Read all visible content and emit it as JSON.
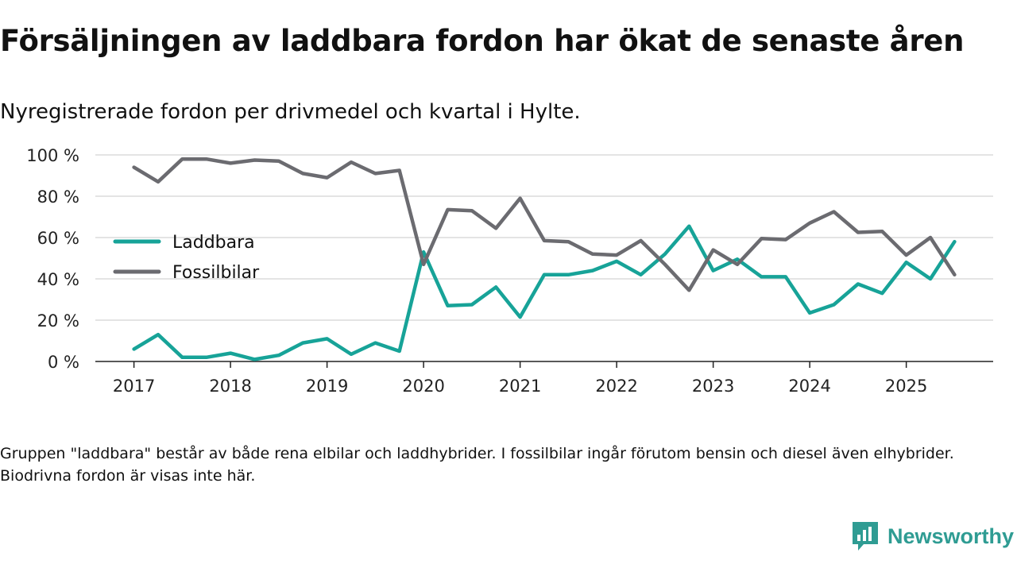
{
  "title": "Försäljningen av laddbara fordon har ökat de senaste åren",
  "subtitle": "Nyregistrerade fordon per drivmedel och kvartal i Hylte.",
  "footnote": "Gruppen \"laddbara\" består av både rena elbilar och laddhybrider. I fossilbilar ingår förutom bensin och diesel även elhybrider. Biodrivna fordon är visas inte här.",
  "brand": {
    "name": "Newsworthy",
    "color": "#2f9c93"
  },
  "chart_data": {
    "type": "line",
    "title": "Försäljningen av laddbara fordon har ökat de senaste åren",
    "xlabel": "",
    "ylabel": "",
    "ylim": [
      0,
      100
    ],
    "y_ticks": [
      0,
      20,
      40,
      60,
      80,
      100
    ],
    "y_tick_labels": [
      "0 %",
      "20 %",
      "40 %",
      "60 %",
      "80 %",
      "100 %"
    ],
    "xlim": [
      2016.6,
      2025.9
    ],
    "x_ticks": [
      2017,
      2018,
      2019,
      2020,
      2021,
      2022,
      2023,
      2024,
      2025
    ],
    "x_tick_labels": [
      "2017",
      "2018",
      "2019",
      "2020",
      "2021",
      "2022",
      "2023",
      "2024",
      "2025"
    ],
    "grid": true,
    "legend_position": "center-left",
    "x": [
      2017.0,
      2017.25,
      2017.5,
      2017.75,
      2018.0,
      2018.25,
      2018.5,
      2018.75,
      2019.0,
      2019.25,
      2019.5,
      2019.75,
      2020.0,
      2020.25,
      2020.5,
      2020.75,
      2021.0,
      2021.25,
      2021.5,
      2021.75,
      2022.0,
      2022.25,
      2022.5,
      2022.75,
      2023.0,
      2023.25,
      2023.5,
      2023.75,
      2024.0,
      2024.25,
      2024.5,
      2024.75,
      2025.0,
      2025.25,
      2025.5
    ],
    "series": [
      {
        "name": "Laddbara",
        "color": "#17a398",
        "values": [
          6,
          13,
          2,
          2,
          4,
          1,
          3,
          9,
          11,
          3.5,
          9,
          5,
          53,
          27,
          27.5,
          36,
          21.5,
          42,
          42,
          44,
          48.5,
          42,
          52,
          65.5,
          44,
          49.5,
          41,
          41,
          23.5,
          27.5,
          37.5,
          33,
          48,
          40,
          58
        ]
      },
      {
        "name": "Fossilbilar",
        "color": "#6b6b70",
        "values": [
          94,
          87,
          98,
          98,
          96,
          97.5,
          97,
          91,
          89,
          96.5,
          91,
          92.5,
          47,
          73.5,
          73,
          64.5,
          79,
          58.5,
          58,
          52,
          51.5,
          58.5,
          47,
          34.5,
          54,
          47,
          59.5,
          59,
          67,
          72.5,
          62.5,
          63,
          51.5,
          60,
          42
        ]
      }
    ]
  }
}
